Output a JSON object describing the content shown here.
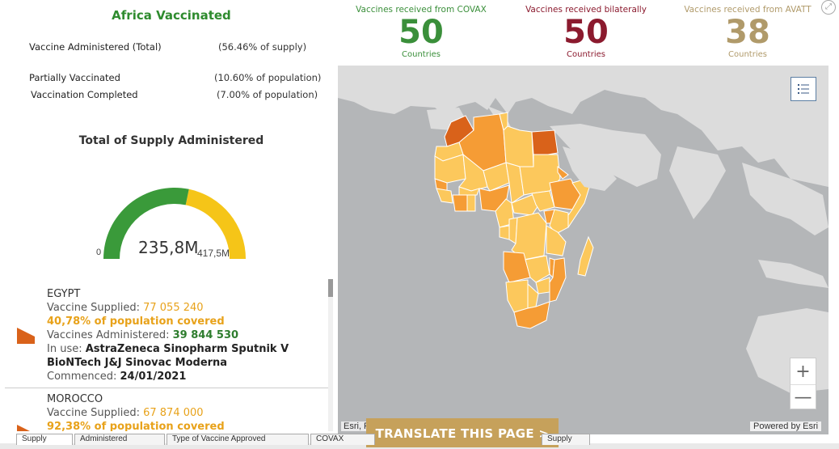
{
  "panel": {
    "title": "Africa Vaccinated",
    "stats": [
      {
        "label": "Vaccine Administered (Total)",
        "value": "(56.46% of supply)"
      },
      {
        "label": "Partially Vaccinated",
        "value": "(10.60% of population)"
      },
      {
        "label": "Vaccination Completed",
        "value": "(7.00% of population)"
      }
    ],
    "gauge": {
      "title": "Total of Supply Administered",
      "min": "0",
      "max": "417,5M",
      "value": "235,8M",
      "fraction": 0.5646,
      "colors": {
        "filled": "#3a9a3a",
        "remaining": "#f5c518"
      }
    }
  },
  "countries": [
    {
      "name": "EGYPT",
      "supplied_label": "Vaccine Supplied: ",
      "supplied": "77 055 240",
      "coverage": "40,78% of population covered",
      "administered_label": "Vaccines Administered: ",
      "administered": "39 844 530",
      "in_use_label": "In use: ",
      "in_use": "AstraZeneca Sinopharm Sputnik V BioNTech J&J Sinovac Moderna",
      "commenced_label": "Commenced: ",
      "commenced": "24/01/2021"
    },
    {
      "name": "MOROCCO",
      "supplied_label": "Vaccine Supplied: ",
      "supplied": "67 874 000",
      "coverage": "92,38% of population covered"
    }
  ],
  "top_stats": [
    {
      "label": "Vaccines received from COVAX",
      "value": "50",
      "sub": "Countries",
      "color": "#3a8f3a"
    },
    {
      "label": "Vaccines received bilaterally",
      "value": "50",
      "sub": "Countries",
      "color": "#8b1a2e"
    },
    {
      "label": "Vaccines received from AVATT",
      "value": "38",
      "sub": "Countries",
      "color": "#b09a6a"
    }
  ],
  "map": {
    "zoom_in": "+",
    "zoom_out": "—",
    "attribution_left": "Esri, F",
    "attribution_right": "Powered by Esri",
    "colors": {
      "ocean": "#b4b6b8",
      "land": "#dcdcdc",
      "low": "#fcc85c",
      "mid": "#f59c35",
      "high": "#d9621a"
    }
  },
  "translate_label": "TRANSLATE THIS PAGE >",
  "tabs": [
    "Supply",
    "Administered",
    "Type of Vaccine Approved",
    "COVAX",
    "Supply"
  ]
}
